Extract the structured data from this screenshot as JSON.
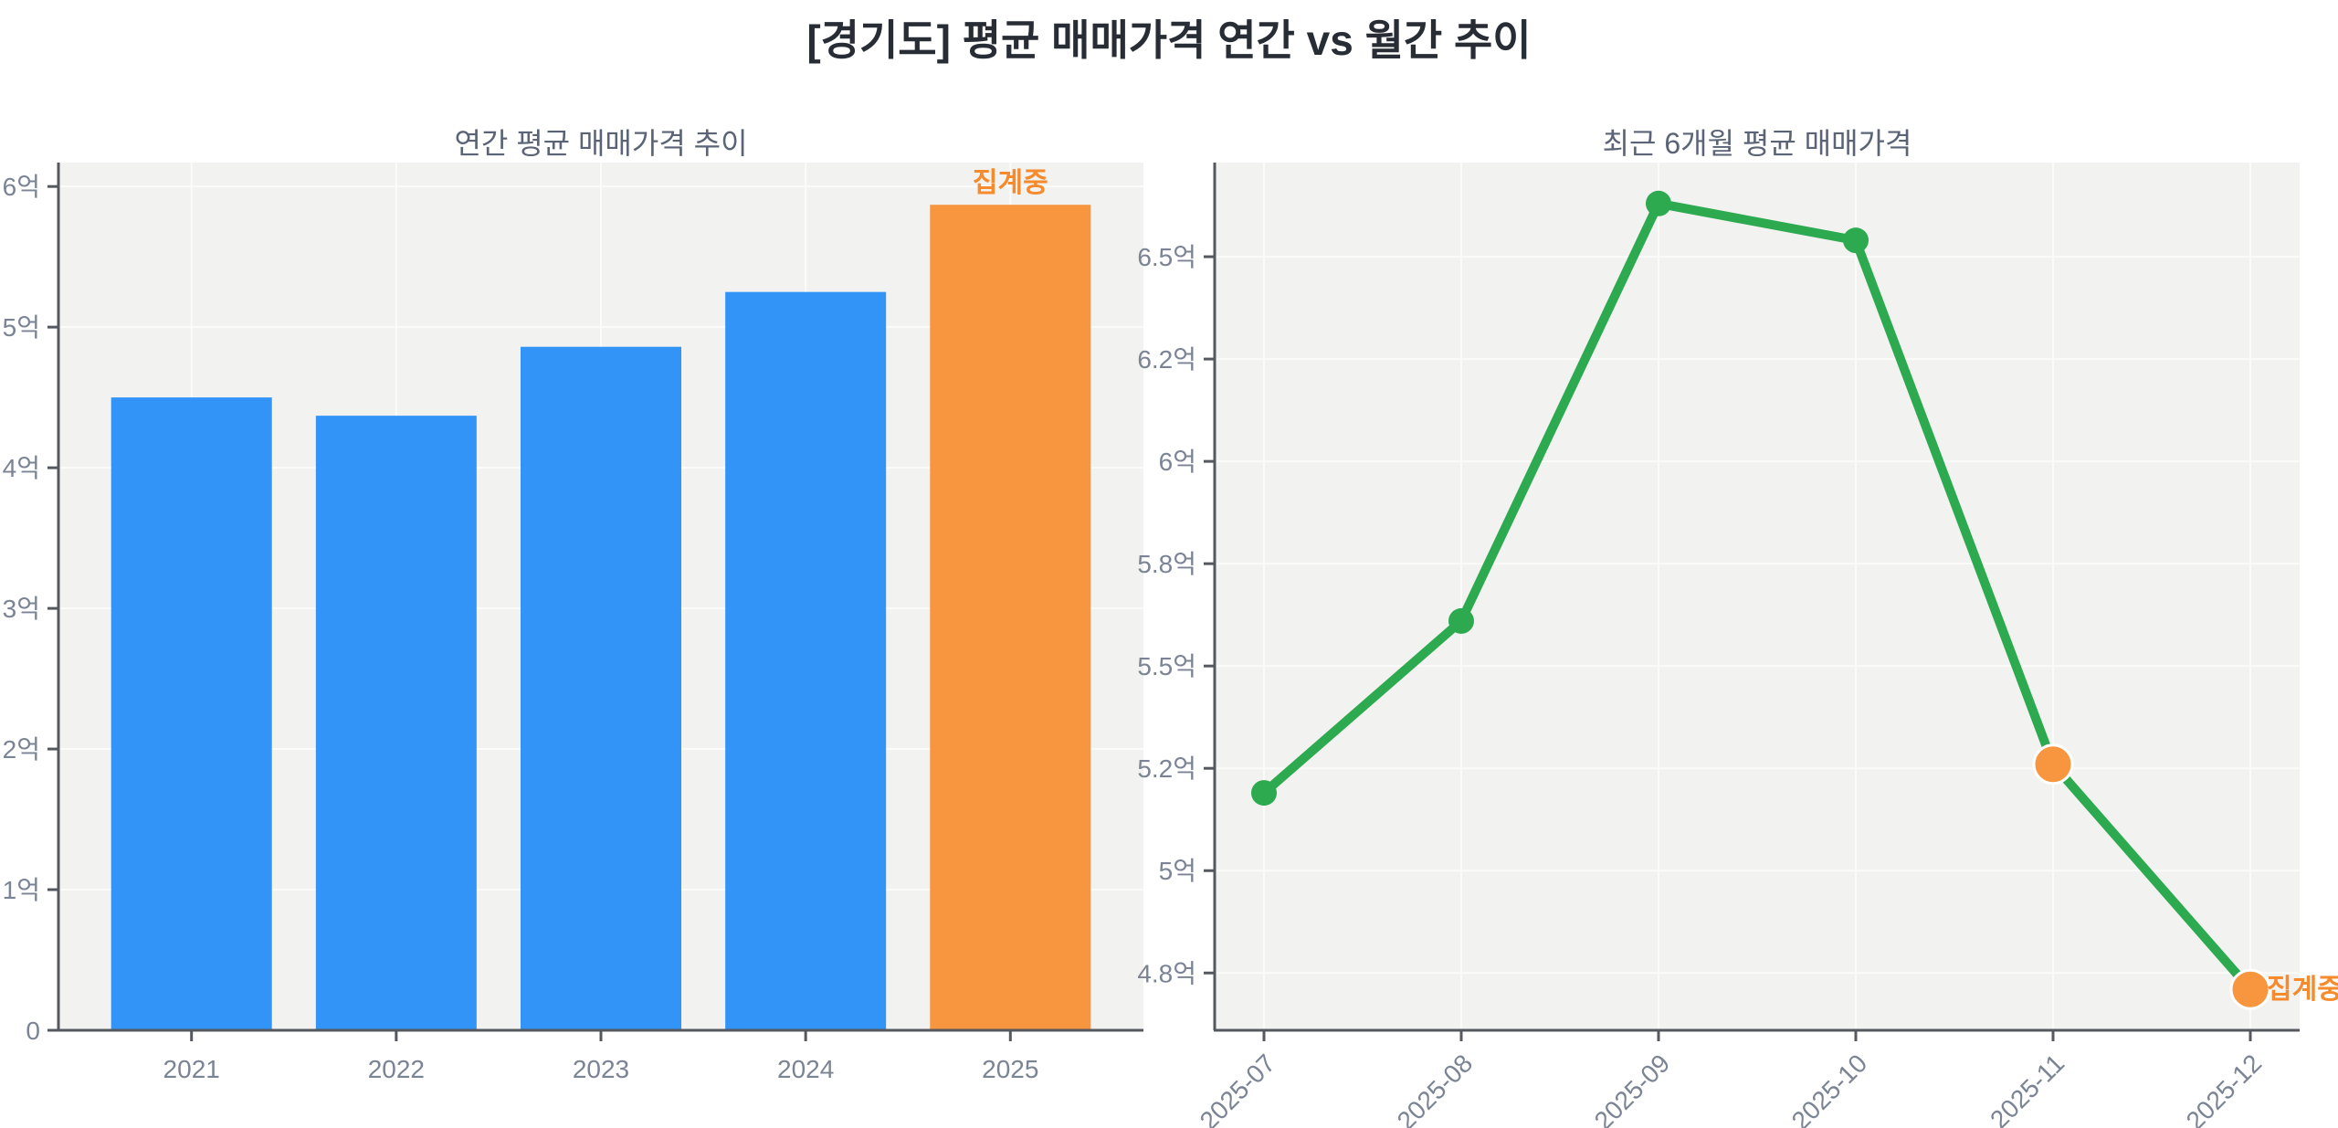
{
  "main_title": "[경기도] 평균 매매가격 연간 vs 월간 추이",
  "colors": {
    "bar_blue": "#3394f7",
    "highlight_orange": "#f8963f",
    "annotation_orange": "#f68b2d",
    "line_green": "#2daa4f",
    "plot_bg": "#f2f2f1",
    "grid": "#fbfbfa",
    "spine": "#55585e",
    "tick_label": "#7b8494",
    "title_gray": "#5b6476"
  },
  "chart_data": [
    {
      "type": "bar",
      "title": "연간 평균 매매가격 추이",
      "categories": [
        "2021",
        "2022",
        "2023",
        "2024",
        "2025"
      ],
      "values": [
        4.5,
        4.37,
        4.86,
        5.25,
        5.87
      ],
      "unit": "억",
      "ylim": [
        0,
        6.17
      ],
      "yticks": [
        {
          "value": 0,
          "label": "0"
        },
        {
          "value": 1,
          "label": "1억"
        },
        {
          "value": 2,
          "label": "2억"
        },
        {
          "value": 3,
          "label": "3억"
        },
        {
          "value": 4,
          "label": "4억"
        },
        {
          "value": 5,
          "label": "5억"
        },
        {
          "value": 6,
          "label": "6억"
        }
      ],
      "grid": true,
      "highlight_index": 4,
      "annotation": {
        "text": "집계중",
        "index": 4
      }
    },
    {
      "type": "line",
      "title": "최근 6개월 평균 매매가격",
      "categories": [
        "2025-07",
        "2025-08",
        "2025-09",
        "2025-10",
        "2025-11",
        "2025-12"
      ],
      "values": [
        5.19,
        5.61,
        6.63,
        6.54,
        5.26,
        4.71
      ],
      "unit": "억",
      "ylim": [
        4.61,
        6.73
      ],
      "yticks": [
        {
          "value": 4.75,
          "label": "4.8억"
        },
        {
          "value": 5.0,
          "label": "5억"
        },
        {
          "value": 5.25,
          "label": "5.2억"
        },
        {
          "value": 5.5,
          "label": "5.5억"
        },
        {
          "value": 5.75,
          "label": "5.8억"
        },
        {
          "value": 6.0,
          "label": "6억"
        },
        {
          "value": 6.25,
          "label": "6.2억"
        },
        {
          "value": 6.5,
          "label": "6.5억"
        }
      ],
      "grid": true,
      "highlight_indices": [
        4,
        5
      ],
      "annotation": {
        "text": "집계중",
        "index": 5
      }
    }
  ]
}
